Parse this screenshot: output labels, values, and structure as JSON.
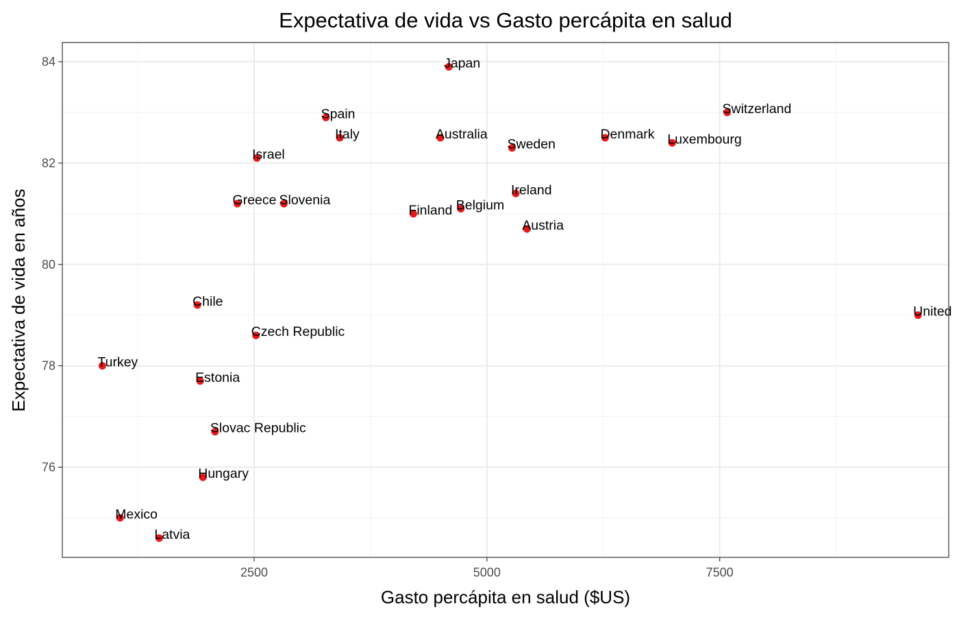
{
  "chart_data": {
    "type": "scatter",
    "title": "Expectativa de vida vs Gasto percápita en salud",
    "xlabel": "Gasto percápita en salud ($US)",
    "ylabel": "Expectativa de vida en años",
    "xlim": [
      440,
      9960
    ],
    "ylim": [
      74.22,
      84.38
    ],
    "x_ticks": [
      2500,
      5000,
      7500
    ],
    "x_tick_labels": [
      "2500",
      "5000",
      "7500"
    ],
    "y_ticks": [
      76,
      78,
      80,
      82,
      84
    ],
    "y_tick_labels": [
      "76",
      "78",
      "80",
      "82",
      "84"
    ],
    "grid": true,
    "point_color": "#e41a1c",
    "points": [
      {
        "label": "Japan",
        "x": 4590,
        "y": 83.9
      },
      {
        "label": "Switzerland",
        "x": 7580,
        "y": 83.0
      },
      {
        "label": "Spain",
        "x": 3270,
        "y": 82.9
      },
      {
        "label": "Italy",
        "x": 3420,
        "y": 82.5
      },
      {
        "label": "Australia",
        "x": 4500,
        "y": 82.5
      },
      {
        "label": "Denmark",
        "x": 6270,
        "y": 82.5
      },
      {
        "label": "Luxembourg",
        "x": 6990,
        "y": 82.4
      },
      {
        "label": "Sweden",
        "x": 5270,
        "y": 82.3
      },
      {
        "label": "Israel",
        "x": 2530,
        "y": 82.1
      },
      {
        "label": "Ireland",
        "x": 5310,
        "y": 81.4
      },
      {
        "label": "Greece",
        "x": 2320,
        "y": 81.2
      },
      {
        "label": "Slovenia",
        "x": 2820,
        "y": 81.2
      },
      {
        "label": "Belgium",
        "x": 4720,
        "y": 81.1
      },
      {
        "label": "Finland",
        "x": 4210,
        "y": 81.0
      },
      {
        "label": "Austria",
        "x": 5430,
        "y": 80.7
      },
      {
        "label": "Chile",
        "x": 1890,
        "y": 79.2
      },
      {
        "label": "United",
        "x": 9630,
        "y": 79.0
      },
      {
        "label": "Czech Republic",
        "x": 2520,
        "y": 78.6
      },
      {
        "label": "Turkey",
        "x": 870,
        "y": 78.0
      },
      {
        "label": "Estonia",
        "x": 1920,
        "y": 77.7
      },
      {
        "label": "Slovac Republic",
        "x": 2080,
        "y": 76.7
      },
      {
        "label": "Hungary",
        "x": 1950,
        "y": 75.8
      },
      {
        "label": "Mexico",
        "x": 1060,
        "y": 75.0
      },
      {
        "label": "Latvia",
        "x": 1480,
        "y": 74.6
      }
    ]
  }
}
